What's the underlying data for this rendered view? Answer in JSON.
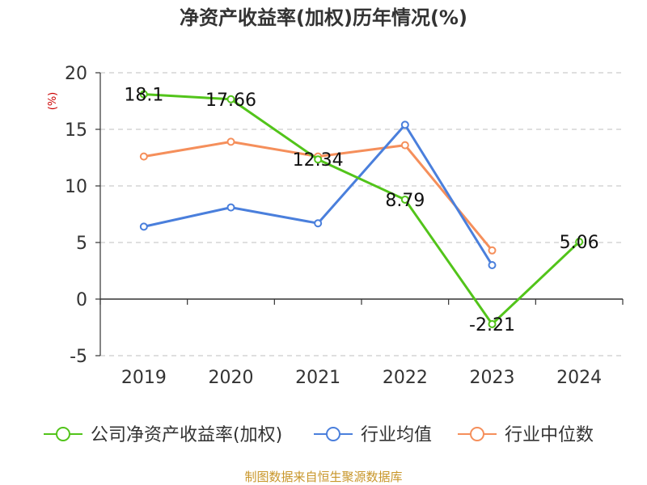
{
  "chart_data": {
    "type": "line",
    "title": "净资产收益率(加权)历年情况(%)",
    "ylabel": "(%)",
    "categories": [
      "2019",
      "2020",
      "2021",
      "2022",
      "2023",
      "2024"
    ],
    "ylim": [
      -5,
      20
    ],
    "yticks": [
      "20",
      "15",
      "10",
      "5",
      "0",
      "-5"
    ],
    "grid": true,
    "legend_position": "bottom",
    "series": [
      {
        "name": "公司净资产收益率(加权)",
        "color": "#52c41a",
        "values": [
          18.1,
          17.66,
          12.34,
          8.79,
          -2.21,
          5.06
        ],
        "labels": [
          "18.1",
          "17.66",
          "12.34",
          "8.79",
          "-2.21",
          "5.06"
        ]
      },
      {
        "name": "行业均值",
        "color": "#4a7fdc",
        "values": [
          6.4,
          8.1,
          6.7,
          15.4,
          3.0,
          null
        ]
      },
      {
        "name": "行业中位数",
        "color": "#f58f5b",
        "values": [
          12.6,
          13.9,
          12.6,
          13.6,
          4.3,
          null
        ]
      }
    ]
  },
  "source": "制图数据来自恒生聚源数据库"
}
